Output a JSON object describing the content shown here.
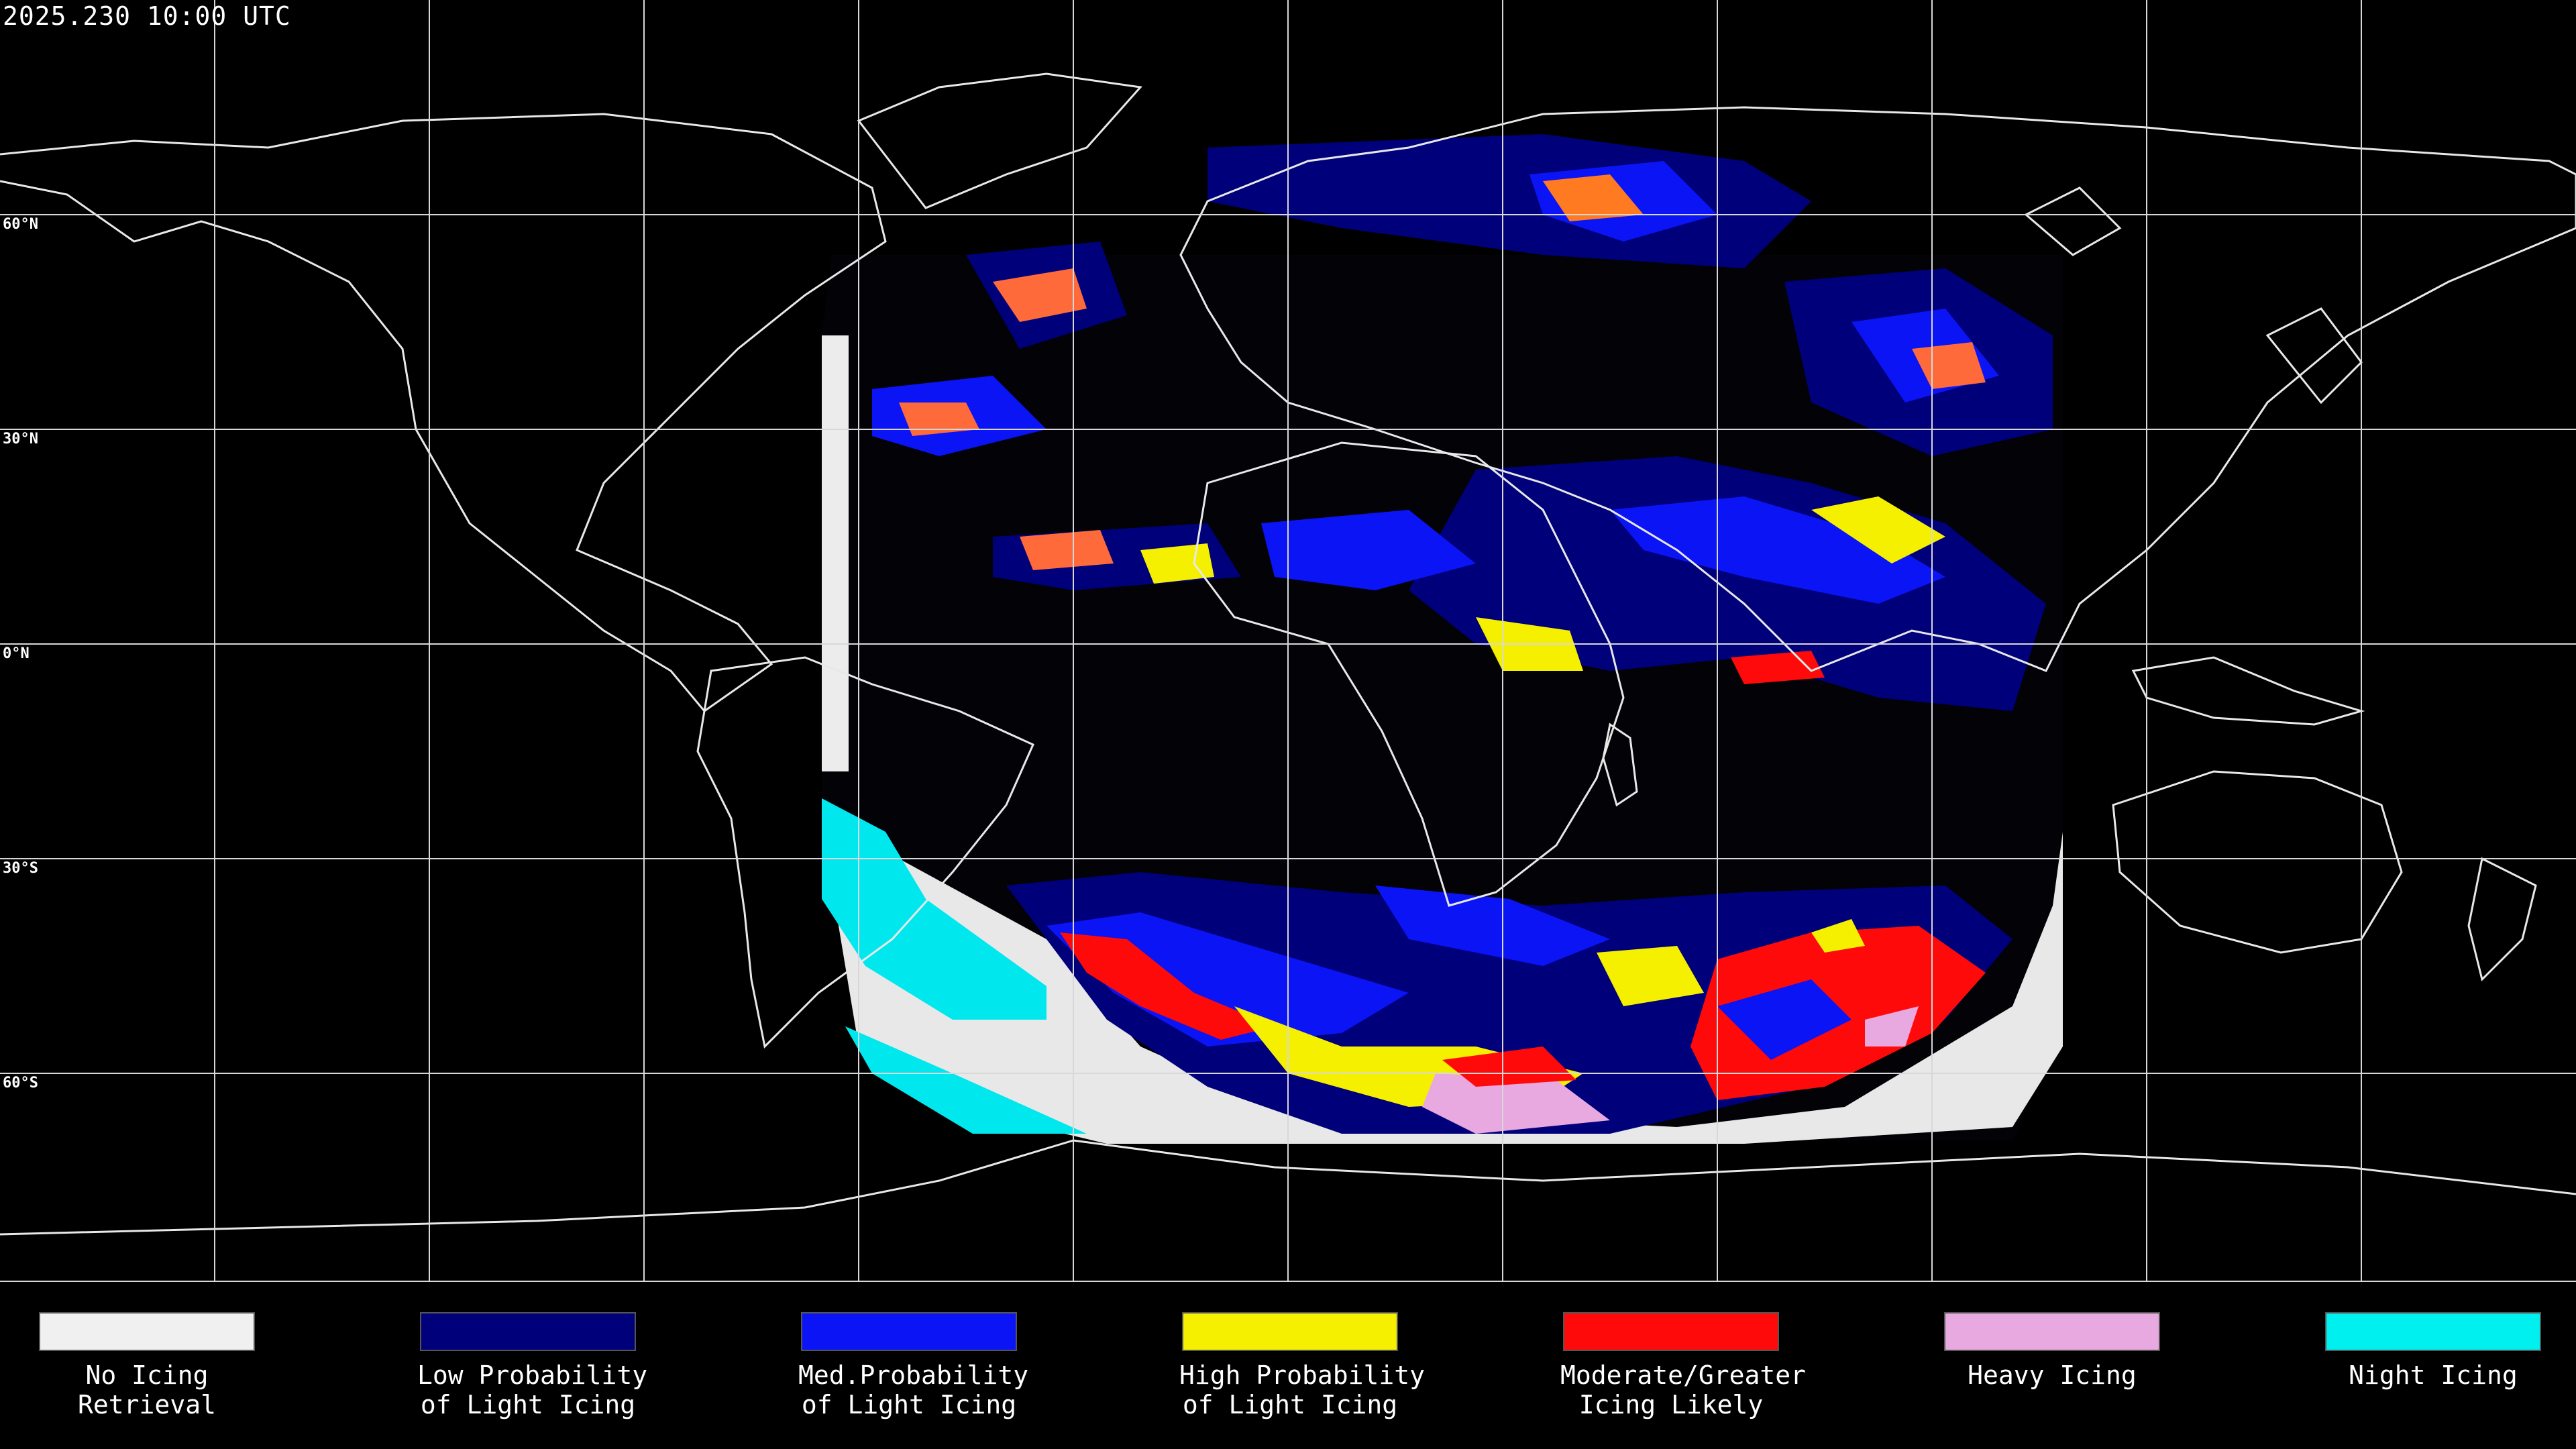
{
  "timestamp": "2025.230 10:00 UTC",
  "lat_labels": [
    "60°N",
    "30°N",
    "0°N",
    "30°S",
    "60°S"
  ],
  "legend": [
    {
      "label": "No Icing\nRetrieval",
      "color": "#f0f0f0"
    },
    {
      "label": "Low Probability\nof Light Icing",
      "color": "#00007a"
    },
    {
      "label": "Med.Probability\nof Light Icing",
      "color": "#0a14f5"
    },
    {
      "label": "High Probability\nof Light Icing",
      "color": "#f5f000"
    },
    {
      "label": "Moderate/Greater\nIcing Likely",
      "color": "#ff0a0a"
    },
    {
      "label": "Heavy Icing",
      "color": "#e8a8e0"
    },
    {
      "label": "Night Icing",
      "color": "#00f0f0"
    }
  ]
}
